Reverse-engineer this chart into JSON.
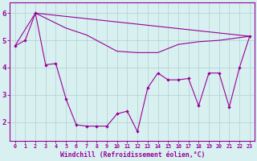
{
  "line1_x": [
    0,
    1,
    2,
    3,
    4,
    5,
    6,
    7,
    8,
    9,
    10,
    11,
    12,
    13,
    14,
    15,
    16,
    17,
    18,
    19,
    20,
    21,
    22,
    23
  ],
  "line1_y": [
    4.8,
    5.0,
    6.0,
    4.1,
    4.15,
    2.85,
    1.9,
    1.85,
    1.85,
    1.85,
    2.3,
    2.4,
    1.65,
    3.25,
    3.8,
    3.55,
    3.55,
    3.6,
    2.6,
    3.8,
    3.8,
    2.55,
    4.0,
    5.15
  ],
  "line2_x": [
    2,
    23
  ],
  "line2_y": [
    6.0,
    5.15
  ],
  "line3_x": [
    0,
    2,
    5,
    7,
    10,
    12,
    14,
    16,
    18,
    20,
    22,
    23
  ],
  "line3_y": [
    4.8,
    6.0,
    5.45,
    5.2,
    4.6,
    4.55,
    4.55,
    4.85,
    4.95,
    5.0,
    5.1,
    5.15
  ],
  "color": "#990099",
  "bg_color": "#d8f0f0",
  "grid_color": "#b0d0d0",
  "xlabel": "Windchill (Refroidissement éolien,°C)",
  "xlim": [
    -0.5,
    23.5
  ],
  "ylim": [
    1.3,
    6.4
  ],
  "yticks": [
    2,
    3,
    4,
    5,
    6
  ],
  "xticks": [
    0,
    1,
    2,
    3,
    4,
    5,
    6,
    7,
    8,
    9,
    10,
    11,
    12,
    13,
    14,
    15,
    16,
    17,
    18,
    19,
    20,
    21,
    22,
    23
  ]
}
